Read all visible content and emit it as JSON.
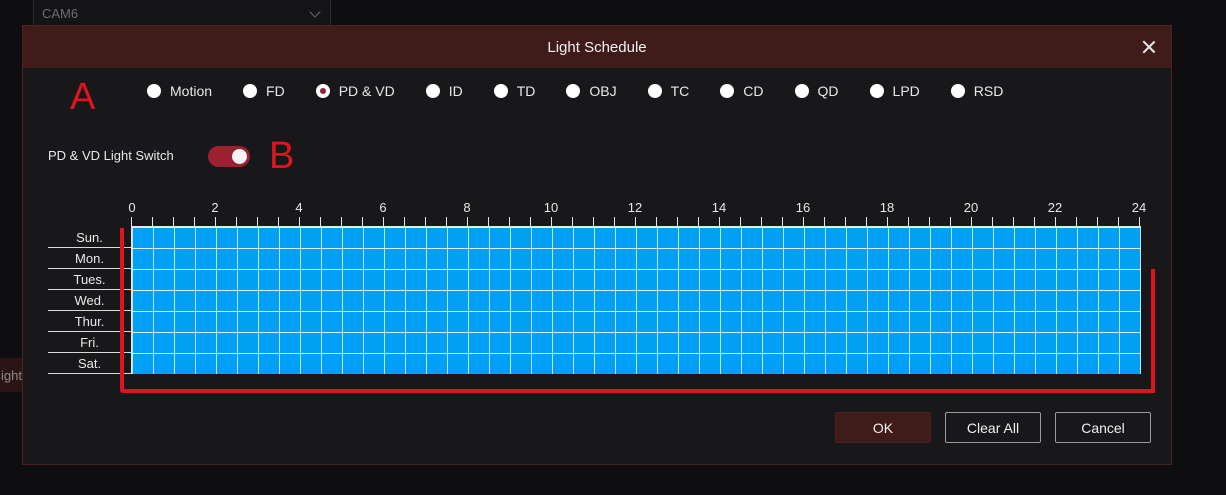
{
  "background": {
    "camera_select": "CAM6",
    "side_tab_fragment": "ight"
  },
  "dialog": {
    "title": "Light Schedule",
    "annotations": {
      "a": "A",
      "b": "B"
    },
    "detection_types": [
      {
        "label": "Motion",
        "selected": false
      },
      {
        "label": "FD",
        "selected": false
      },
      {
        "label": "PD & VD",
        "selected": true
      },
      {
        "label": "ID",
        "selected": false
      },
      {
        "label": "TD",
        "selected": false
      },
      {
        "label": "OBJ",
        "selected": false
      },
      {
        "label": "TC",
        "selected": false
      },
      {
        "label": "CD",
        "selected": false
      },
      {
        "label": "QD",
        "selected": false
      },
      {
        "label": "LPD",
        "selected": false
      },
      {
        "label": "RSD",
        "selected": false
      }
    ],
    "light_switch": {
      "label": "PD & VD Light Switch",
      "on": true
    },
    "schedule": {
      "hour_labels": [
        "0",
        "2",
        "4",
        "6",
        "8",
        "10",
        "12",
        "14",
        "16",
        "18",
        "20",
        "22",
        "24"
      ],
      "days": [
        "Sun.",
        "Mon.",
        "Tues.",
        "Wed.",
        "Thur.",
        "Fri.",
        "Sat."
      ],
      "fill_color": "#00a0f5",
      "all_slots_selected": true
    },
    "buttons": {
      "ok": "OK",
      "clear_all": "Clear All",
      "cancel": "Cancel"
    },
    "colors": {
      "accent": "#9b2130",
      "header": "#3f1c1a",
      "annotation": "#e0141c"
    }
  }
}
